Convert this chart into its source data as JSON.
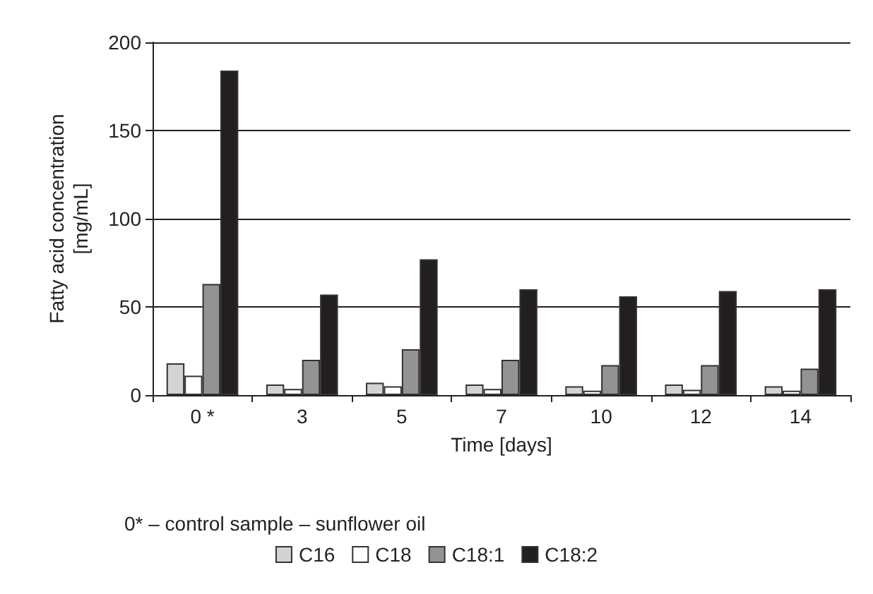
{
  "chart_data": {
    "type": "bar",
    "xlabel": "Time [days]",
    "ylabel": "Fatty acid concentration\n[mg/mL]",
    "categories": [
      "0 *",
      "3",
      "5",
      "7",
      "10",
      "12",
      "14"
    ],
    "series": [
      {
        "name": "C16",
        "color": "#d3d3d3",
        "values": [
          18,
          6,
          7,
          6,
          5,
          6,
          5
        ]
      },
      {
        "name": "C18",
        "color": "#ffffff",
        "values": [
          11,
          3.5,
          5,
          3.5,
          2.5,
          3,
          2.5
        ]
      },
      {
        "name": "C18:1",
        "color": "#939393",
        "values": [
          63,
          20,
          26,
          20,
          17,
          17,
          15
        ]
      },
      {
        "name": "C18:2",
        "color": "#231f20",
        "values": [
          184,
          57,
          77,
          60,
          56,
          59,
          60
        ]
      }
    ],
    "ylim": [
      0,
      200
    ],
    "yticks": [
      0,
      50,
      100,
      150,
      200
    ],
    "grid": "y",
    "legend": "bottom",
    "annotations": [
      "0* – control sample – sunflower oil"
    ]
  }
}
